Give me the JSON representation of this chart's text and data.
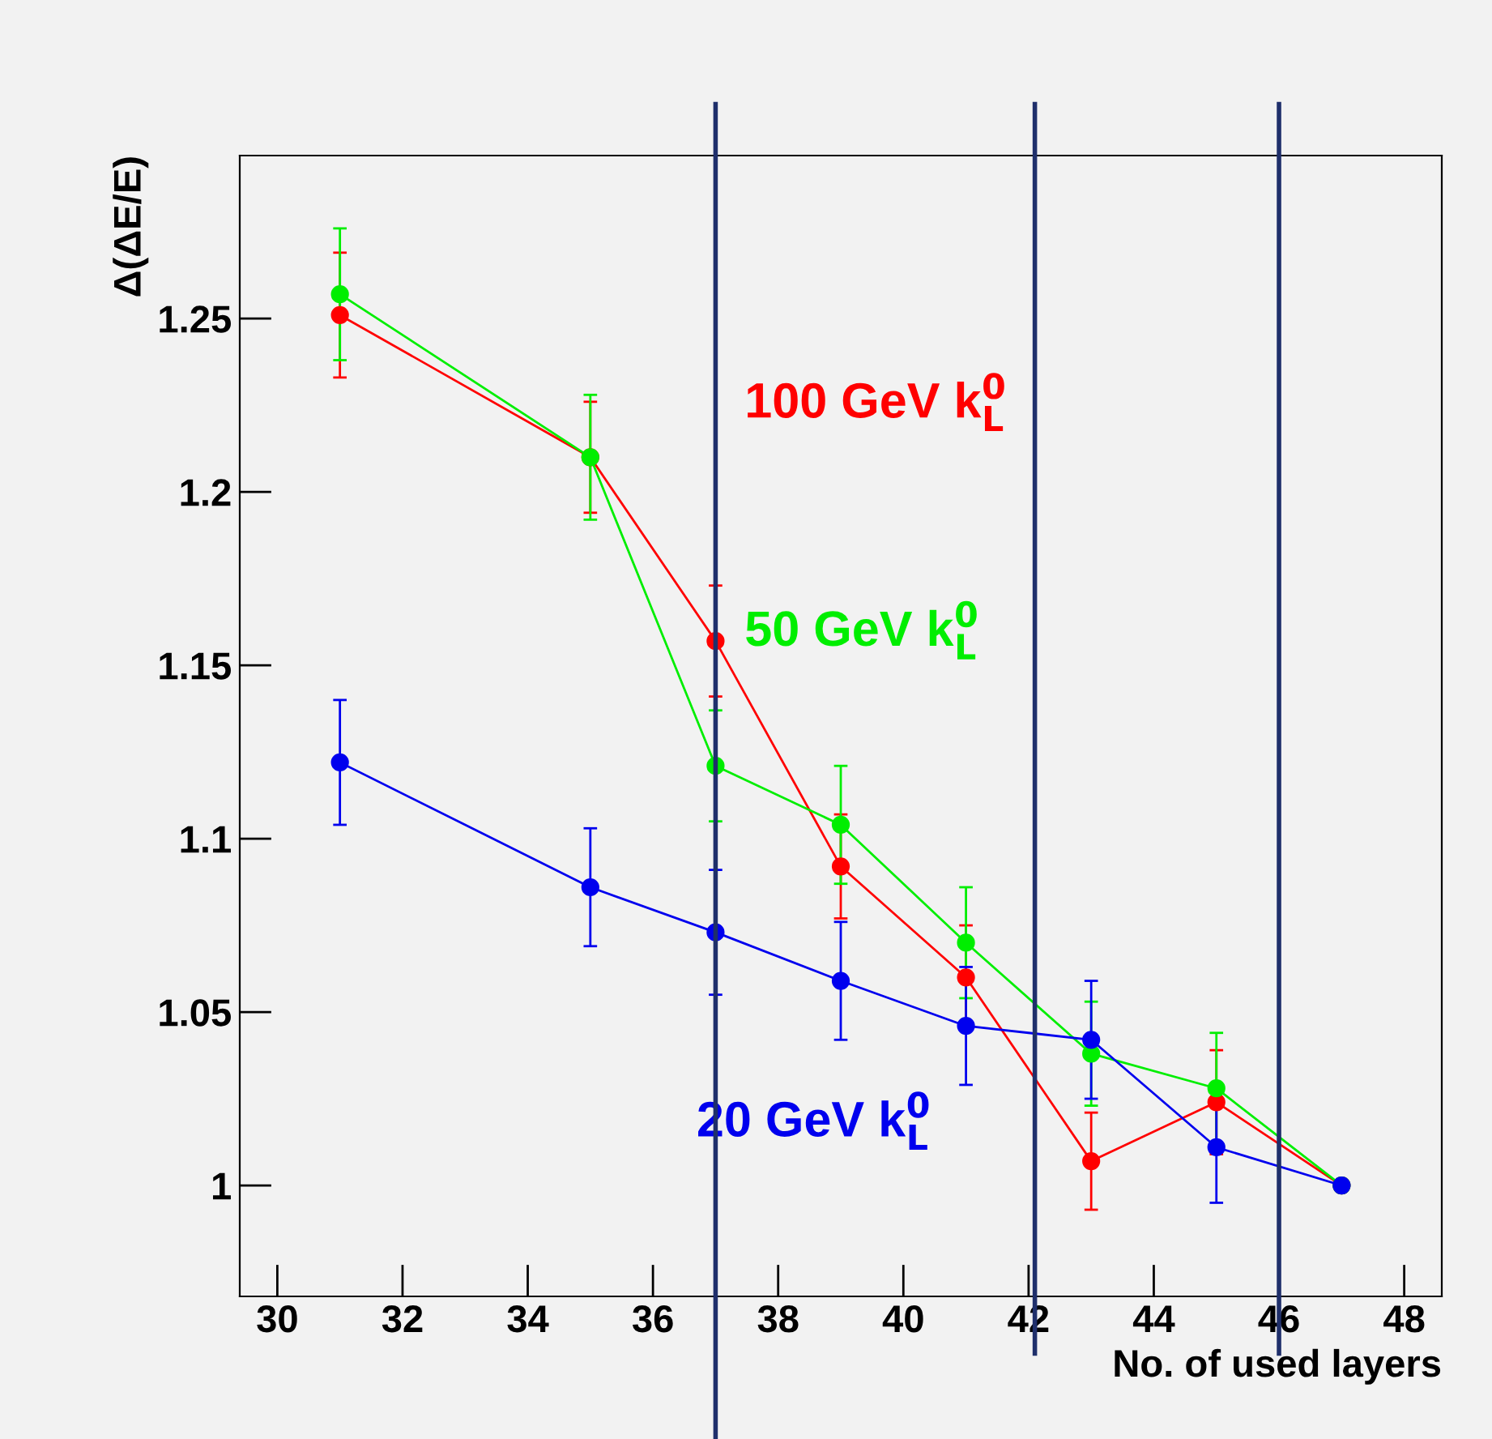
{
  "chart_data": {
    "type": "line",
    "xlabel": "No. of used layers",
    "ylabel": "Δ(ΔE/E)",
    "x": [
      31,
      35,
      37,
      39,
      41,
      43,
      45,
      47
    ],
    "series": [
      {
        "name": "100 GeV k$^{0}$$_{L}$",
        "color": "#ff0000",
        "values": [
          1.251,
          1.21,
          1.157,
          1.092,
          1.06,
          1.007,
          1.024,
          1.0
        ],
        "errors": [
          0.018,
          0.016,
          0.016,
          0.015,
          0.015,
          0.014,
          0.015,
          null
        ]
      },
      {
        "name": "50 GeV k$^{0}$$_{L}$",
        "color": "#00ee00",
        "values": [
          1.257,
          1.21,
          1.121,
          1.104,
          1.07,
          1.038,
          1.028,
          1.0
        ],
        "errors": [
          0.019,
          0.018,
          0.016,
          0.017,
          0.016,
          0.015,
          0.016,
          null
        ]
      },
      {
        "name": "20 GeV k$^{0}$$_{L}$",
        "color": "#0000ee",
        "values": [
          1.122,
          1.086,
          1.073,
          1.059,
          1.046,
          1.042,
          1.011,
          1.0
        ],
        "errors": [
          0.018,
          0.017,
          0.018,
          0.017,
          0.017,
          0.017,
          0.016,
          null
        ]
      }
    ],
    "xlim": [
      29.4,
      48.6
    ],
    "ylim": [
      0.968,
      1.297
    ],
    "xticks": [
      30,
      32,
      34,
      36,
      38,
      40,
      42,
      44,
      46,
      48
    ],
    "yticks": [
      1,
      1.05,
      1.1,
      1.15,
      1.2,
      1.25
    ],
    "ref_lines": [
      {
        "axis": "x",
        "value": 37.0,
        "color": "#1f2f6b"
      },
      {
        "axis": "x",
        "value": 42.1,
        "color": "#1f2f6b"
      },
      {
        "axis": "x",
        "value": 46.0,
        "color": "#1f2f6b"
      }
    ],
    "marker": "circle",
    "line_style": "solid",
    "grid": false
  }
}
